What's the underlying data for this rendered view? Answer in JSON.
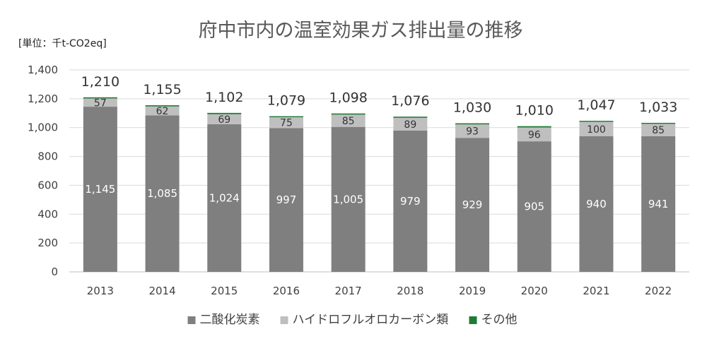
{
  "chart_data": {
    "type": "bar",
    "stacked": true,
    "title": "府中市内の温室効果ガス排出量の推移",
    "unit_label": "[単位：千t-CO2eq]",
    "categories": [
      "2013",
      "2014",
      "2015",
      "2016",
      "2017",
      "2018",
      "2019",
      "2020",
      "2021",
      "2022"
    ],
    "series": [
      {
        "name": "二酸化炭素",
        "color": "#7f7f7f",
        "values": [
          1145,
          1085,
          1024,
          997,
          1005,
          979,
          929,
          905,
          940,
          941
        ],
        "labels": [
          "1,145",
          "1,085",
          "1,024",
          "997",
          "1,005",
          "979",
          "929",
          "905",
          "940",
          "941"
        ]
      },
      {
        "name": "ハイドロフルオロカーボン類",
        "color": "#bfbfbf",
        "values": [
          57,
          62,
          69,
          75,
          85,
          89,
          93,
          96,
          100,
          85
        ],
        "labels": [
          "57",
          "62",
          "69",
          "75",
          "85",
          "89",
          "93",
          "96",
          "100",
          "85"
        ]
      },
      {
        "name": "その他",
        "color": "#1e7b34",
        "values": [
          8,
          8,
          9,
          7,
          8,
          8,
          8,
          9,
          7,
          7
        ]
      }
    ],
    "totals": [
      "1,210",
      "1,155",
      "1,102",
      "1,079",
      "1,098",
      "1,076",
      "1,030",
      "1,010",
      "1,047",
      "1,033"
    ],
    "ylim": [
      0,
      1400
    ],
    "yticks": [
      "0",
      "200",
      "400",
      "600",
      "800",
      "1,000",
      "1,200",
      "1,400"
    ],
    "grid": true,
    "legend_position": "bottom"
  }
}
